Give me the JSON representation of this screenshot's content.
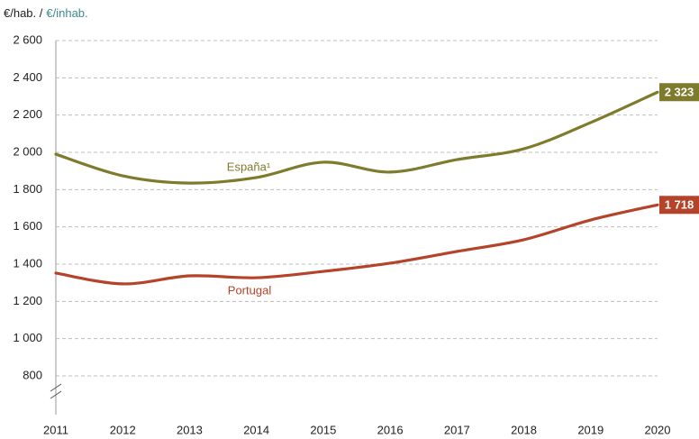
{
  "chart_data": {
    "type": "line",
    "ylabel": "€/hab. /",
    "ylabel_alt": "€/inhab.",
    "x": [
      2011,
      2012,
      2013,
      2014,
      2015,
      2016,
      2017,
      2018,
      2019,
      2020
    ],
    "xlim": [
      2011,
      2020
    ],
    "xticks": [
      2011,
      2012,
      2013,
      2014,
      2015,
      2016,
      2017,
      2018,
      2019,
      2020
    ],
    "ylim": [
      800,
      2600
    ],
    "yticks": [
      {
        "value": 800,
        "label": "800"
      },
      {
        "value": 1000,
        "label": "1 000"
      },
      {
        "value": 1200,
        "label": "1 200"
      },
      {
        "value": 1400,
        "label": "1 400"
      },
      {
        "value": 1600,
        "label": "1 600"
      },
      {
        "value": 1800,
        "label": "1 800"
      },
      {
        "value": 2000,
        "label": "2 000"
      },
      {
        "value": 2200,
        "label": "2 200"
      },
      {
        "value": 2400,
        "label": "2 400"
      },
      {
        "value": 2600,
        "label": "2 600"
      }
    ],
    "grid": true,
    "series": [
      {
        "name": "España¹",
        "color": "#7f7b2c",
        "values": [
          1990,
          1874,
          1835,
          1865,
          1947,
          1894,
          1961,
          2019,
          2160,
          2323
        ],
        "value_labels": [
          null,
          null,
          null,
          null,
          null,
          null,
          null,
          null,
          null,
          "2 323"
        ]
      },
      {
        "name": "Portugal",
        "color": "#b5432a",
        "values": [
          1352,
          1294,
          1337,
          1327,
          1361,
          1405,
          1468,
          1531,
          1637,
          1718
        ],
        "value_labels": [
          null,
          null,
          null,
          null,
          null,
          null,
          null,
          null,
          null,
          "1 718"
        ]
      }
    ]
  }
}
